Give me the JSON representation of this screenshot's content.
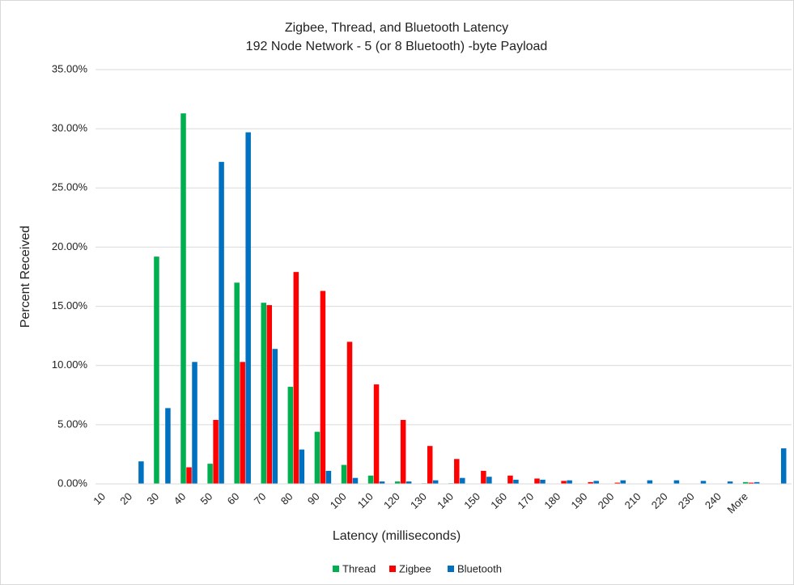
{
  "chart_data": {
    "type": "bar",
    "title": "Zigbee, Thread, and Bluetooth Latency",
    "subtitle": "192 Node Network - 5 (or 8 Bluetooth) -byte Payload",
    "x_label": "Latency (milliseconds)",
    "y_label": "Percent Received",
    "categories": [
      "10",
      "20",
      "30",
      "40",
      "50",
      "60",
      "70",
      "80",
      "90",
      "100",
      "110",
      "120",
      "130",
      "140",
      "150",
      "160",
      "170",
      "180",
      "190",
      "200",
      "210",
      "220",
      "230",
      "240",
      "More",
      null
    ],
    "series": [
      {
        "name": "Thread",
        "color": "#00b050",
        "values": [
          0,
          0,
          19.2,
          31.3,
          1.7,
          17.0,
          15.3,
          8.2,
          4.4,
          1.6,
          0.7,
          0.2,
          0.05,
          0.05,
          0,
          0,
          0,
          0,
          0,
          0,
          0,
          0,
          0,
          0,
          0.15,
          0
        ]
      },
      {
        "name": "Zigbee",
        "color": "#ff0000",
        "values": [
          0,
          0,
          0,
          1.4,
          5.4,
          10.3,
          15.1,
          17.9,
          16.3,
          12.0,
          8.4,
          5.4,
          3.2,
          2.1,
          1.1,
          0.7,
          0.45,
          0.25,
          0.15,
          0.1,
          0,
          0,
          0,
          0,
          0.1,
          0
        ]
      },
      {
        "name": "Bluetooth",
        "color": "#0070c0",
        "values": [
          0,
          1.9,
          6.4,
          10.3,
          27.2,
          29.7,
          11.4,
          2.9,
          1.1,
          0.5,
          0.2,
          0.2,
          0.3,
          0.5,
          0.6,
          0.35,
          0.35,
          0.3,
          0.25,
          0.3,
          0.3,
          0.3,
          0.25,
          0.2,
          0.15,
          3.0
        ]
      }
    ],
    "ylim": [
      0,
      35
    ],
    "yticks": [
      {
        "value": 0,
        "label": "0.00%"
      },
      {
        "value": 5,
        "label": "5.00%"
      },
      {
        "value": 10,
        "label": "10.00%"
      },
      {
        "value": 15,
        "label": "15.00%"
      },
      {
        "value": 20,
        "label": "20.00%"
      },
      {
        "value": 25,
        "label": "25.00%"
      },
      {
        "value": 30,
        "label": "30.00%"
      },
      {
        "value": 35,
        "label": "35.00%"
      }
    ],
    "grid": true,
    "legend": "bottom"
  }
}
